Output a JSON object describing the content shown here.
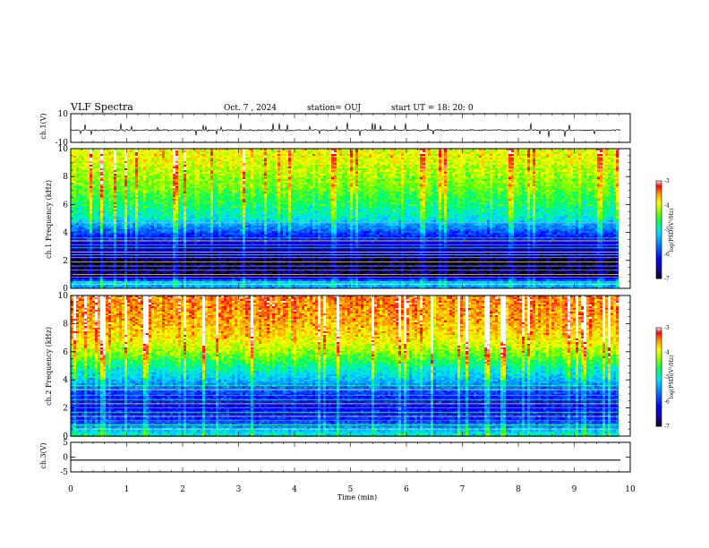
{
  "header": {
    "title": "VLF Spectra",
    "date": "Oct. 7 , 2024",
    "station": "station= OUJ",
    "start": "start UT = 18: 20: 0"
  },
  "chart_data": [
    {
      "type": "line",
      "panel": "ch1-waveform",
      "ylabel": "ch.1(V)",
      "ylim": [
        -10,
        10
      ],
      "yticks": [
        "10",
        "-10"
      ],
      "xlim": [
        0,
        10
      ],
      "data_end_x": 9.83,
      "mean": -1.5,
      "color": "#000000"
    },
    {
      "type": "heatmap",
      "panel": "ch1-spectrogram",
      "ylabel": "ch.1 Frequency (kHz)",
      "ylim": [
        0,
        10
      ],
      "yticks": [
        "0",
        "2",
        "4",
        "6",
        "8",
        "10"
      ],
      "xlim": [
        0,
        10
      ],
      "data_end_x": 9.83,
      "colorbar": {
        "label": "log(PSD)(V²/Hz)",
        "range": [
          -7,
          -3
        ],
        "ticks": [
          "-3",
          "-4",
          "-5",
          "-6",
          "-7"
        ]
      },
      "profile": [
        {
          "f": 0.0,
          "v": -5.5
        },
        {
          "f": 0.4,
          "v": -5.2
        },
        {
          "f": 0.8,
          "v": -6.6
        },
        {
          "f": 1.5,
          "v": -6.9
        },
        {
          "f": 2.2,
          "v": -6.7
        },
        {
          "f": 2.8,
          "v": -6.5
        },
        {
          "f": 3.3,
          "v": -6.3
        },
        {
          "f": 3.7,
          "v": -6.1
        },
        {
          "f": 4.3,
          "v": -5.6
        },
        {
          "f": 5.0,
          "v": -5.0
        },
        {
          "f": 6.0,
          "v": -4.7
        },
        {
          "f": 7.0,
          "v": -4.4
        },
        {
          "f": 8.0,
          "v": -4.2
        },
        {
          "f": 9.0,
          "v": -4.0
        },
        {
          "f": 10.0,
          "v": -3.9
        }
      ],
      "lines_khz": [
        0.3,
        0.45,
        0.8,
        1.0,
        1.3,
        1.6,
        1.9,
        2.2,
        2.4,
        2.6,
        2.9,
        3.1,
        3.4,
        3.6,
        4.7
      ]
    },
    {
      "type": "heatmap",
      "panel": "ch2-spectrogram",
      "ylabel": "ch.2 Frequency (kHz)",
      "ylim": [
        0,
        10
      ],
      "yticks": [
        "0",
        "2",
        "4",
        "6",
        "8",
        "10"
      ],
      "xlim": [
        0,
        10
      ],
      "data_end_x": 9.83,
      "colorbar": {
        "label": "log(PSD)(V²/Hz)",
        "range": [
          -7,
          -3
        ],
        "ticks": [
          "-3",
          "-4",
          "-5",
          "-6",
          "-7"
        ]
      },
      "profile": [
        {
          "f": 0.0,
          "v": -4.8
        },
        {
          "f": 0.6,
          "v": -5.4
        },
        {
          "f": 1.2,
          "v": -6.0
        },
        {
          "f": 2.0,
          "v": -6.2
        },
        {
          "f": 2.7,
          "v": -6.1
        },
        {
          "f": 3.3,
          "v": -5.8
        },
        {
          "f": 4.0,
          "v": -5.3
        },
        {
          "f": 5.0,
          "v": -4.8
        },
        {
          "f": 6.0,
          "v": -4.2
        },
        {
          "f": 7.0,
          "v": -3.8
        },
        {
          "f": 8.0,
          "v": -3.6
        },
        {
          "f": 9.0,
          "v": -3.5
        },
        {
          "f": 10.0,
          "v": -3.4
        }
      ],
      "lines_khz": [
        0.5,
        0.8,
        1.1,
        1.4,
        1.7,
        2.0,
        2.3,
        2.6,
        2.9,
        3.3,
        3.6
      ]
    },
    {
      "type": "line",
      "panel": "ch3-waveform",
      "ylabel": "ch.3(V)",
      "ylim": [
        -5,
        5
      ],
      "yticks": [
        "5",
        "0",
        "-5"
      ],
      "xlim": [
        0,
        10
      ],
      "data_end_x": 9.83,
      "mean": -1.0,
      "color": "#000000"
    }
  ],
  "xaxis": {
    "label": "Time (min)",
    "ticks": [
      "0",
      "1",
      "2",
      "3",
      "4",
      "5",
      "6",
      "7",
      "8",
      "9",
      "10"
    ]
  }
}
